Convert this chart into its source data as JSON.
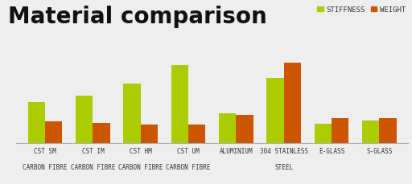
{
  "title": "Material comparison",
  "title_fontsize": 20,
  "background_color": "#eeeeee",
  "plot_bg_color": "#eeeeee",
  "categories_line1": [
    "CST SM",
    "CST IM",
    "CST HM",
    "CST UM",
    "ALUMINIUM",
    "304 STAINLESS",
    "E-GLASS",
    "S-GLASS"
  ],
  "categories_line2": [
    "CARBON FIBRE",
    "CARBON FIBRE",
    "CARBON FIBRE",
    "CARBON FIBRE",
    "",
    "STEEL",
    "",
    ""
  ],
  "stiffness": [
    38,
    44,
    55,
    72,
    28,
    60,
    18,
    21
  ],
  "weight": [
    20,
    19,
    17,
    17,
    26,
    74,
    23,
    23
  ],
  "stiffness_color": "#aacc00",
  "weight_color": "#cc5500",
  "legend_stiffness": "STIFFNESS",
  "legend_weight": "WEIGHT",
  "legend_fontsize": 6.5,
  "grid_color": "#cccccc",
  "bar_width": 0.36,
  "ylim": [
    0,
    85
  ],
  "tick_label_fontsize": 5.5,
  "category_fontsize": 5.5
}
